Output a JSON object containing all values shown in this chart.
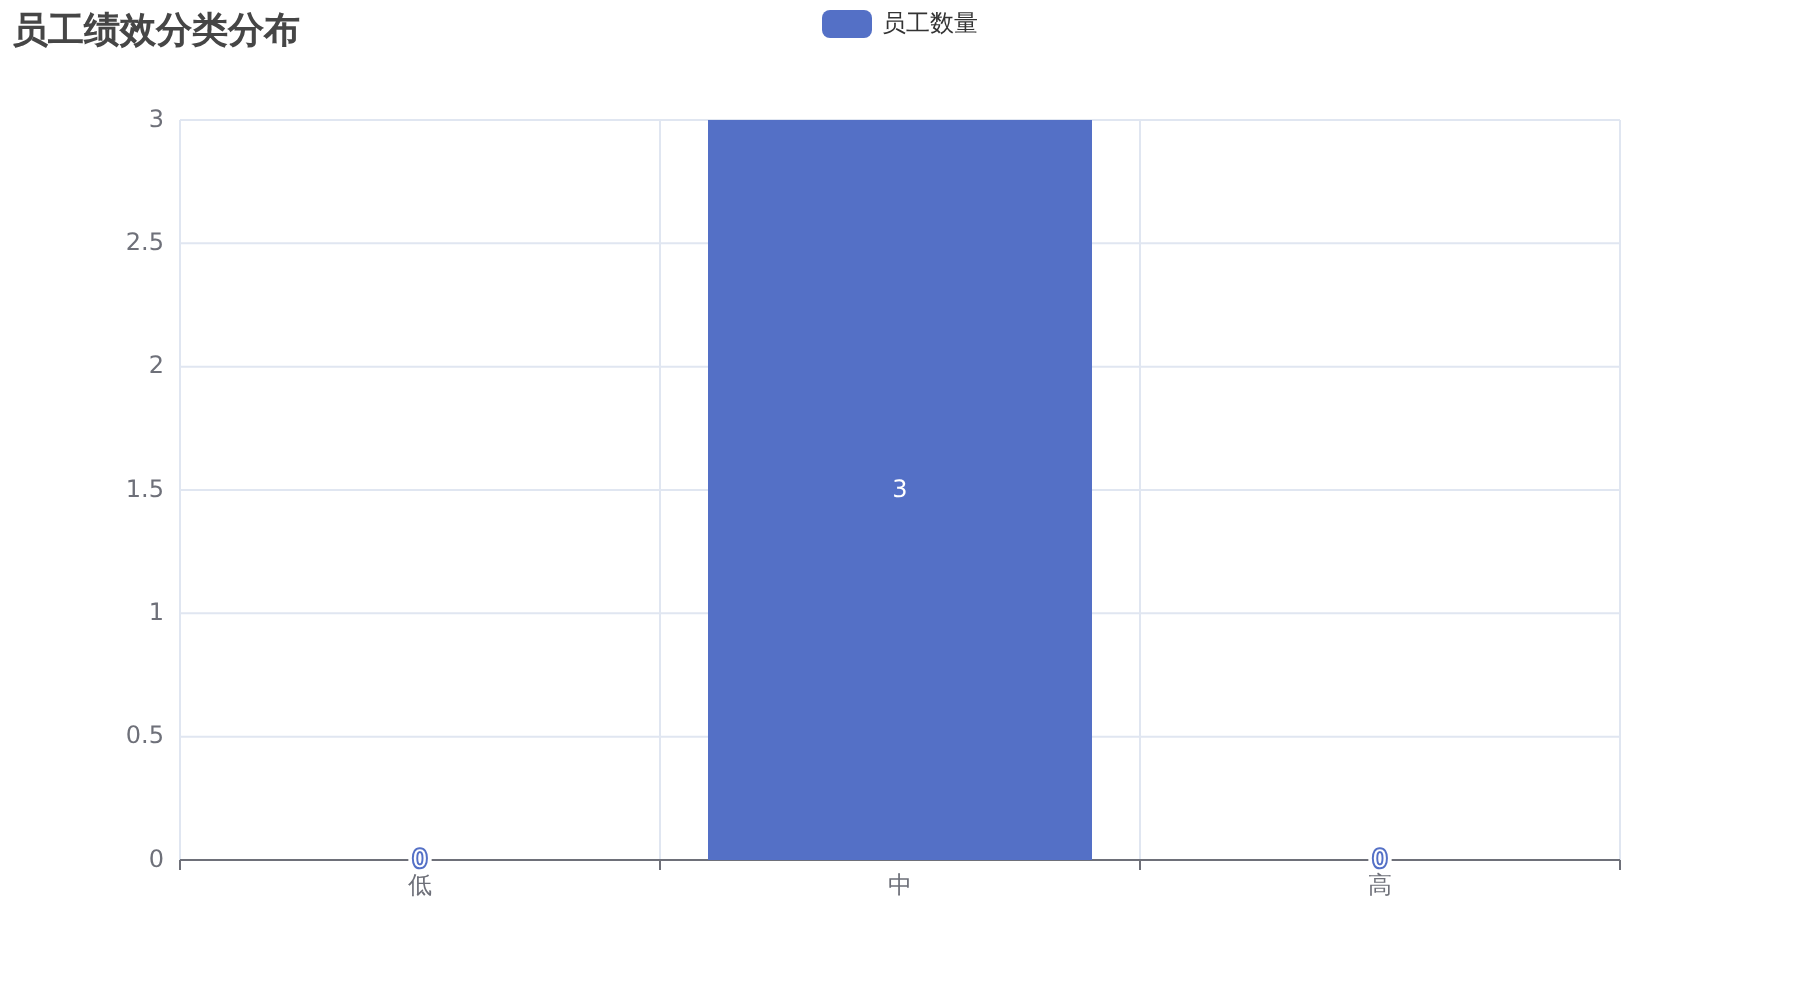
{
  "chart_data": {
    "type": "bar",
    "title": "员工绩效分类分布",
    "categories": [
      "低",
      "中",
      "高"
    ],
    "series": [
      {
        "name": "员工数量",
        "color": "#5470c6",
        "values": [
          0,
          3,
          0
        ]
      }
    ],
    "ylim": [
      0,
      3
    ],
    "yticks": [
      0,
      0.5,
      1,
      1.5,
      2,
      2.5,
      3
    ],
    "grid": true,
    "legend": "top",
    "data_labels": true
  }
}
